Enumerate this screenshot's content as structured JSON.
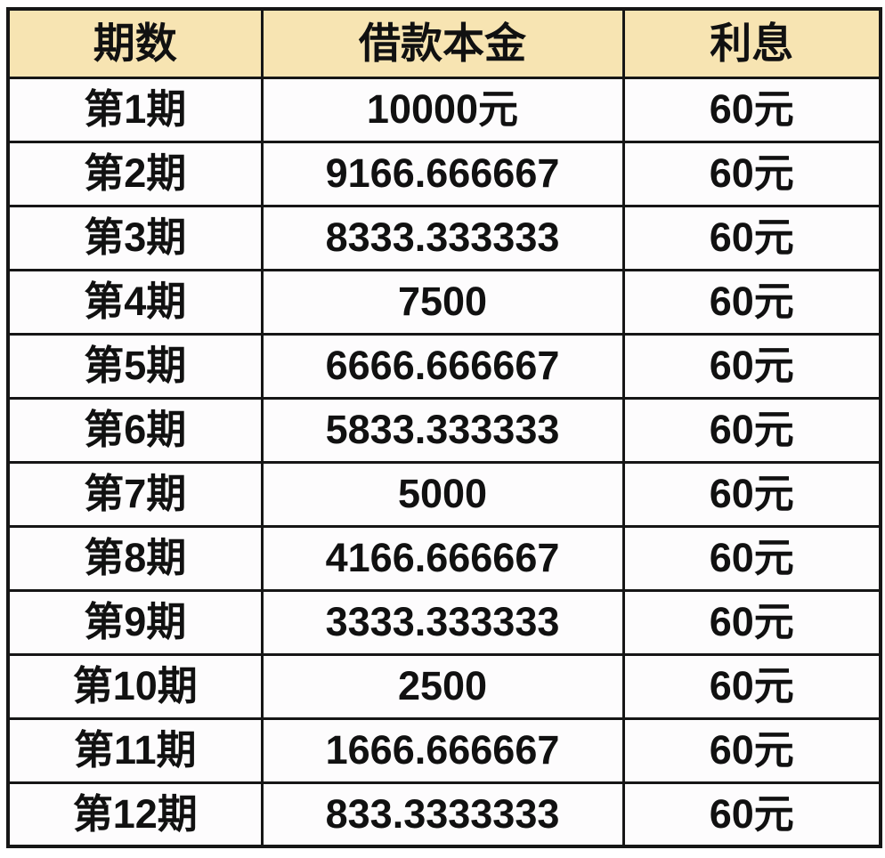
{
  "colors": {
    "header_bg": "#f7e4b2",
    "border": "#161616",
    "cell_bg": "#fdfcfd",
    "text": "#111111"
  },
  "chart_data": {
    "type": "table",
    "columns": [
      "期数",
      "借款本金",
      "利息"
    ],
    "rows": [
      [
        "第1期",
        "10000元",
        "60元"
      ],
      [
        "第2期",
        "9166.666667",
        "60元"
      ],
      [
        "第3期",
        "8333.333333",
        "60元"
      ],
      [
        "第4期",
        "7500",
        "60元"
      ],
      [
        "第5期",
        "6666.666667",
        "60元"
      ],
      [
        "第6期",
        "5833.333333",
        "60元"
      ],
      [
        "第7期",
        "5000",
        "60元"
      ],
      [
        "第8期",
        "4166.666667",
        "60元"
      ],
      [
        "第9期",
        "3333.333333",
        "60元"
      ],
      [
        "第10期",
        "2500",
        "60元"
      ],
      [
        "第11期",
        "1666.666667",
        "60元"
      ],
      [
        "第12期",
        "833.3333333",
        "60元"
      ]
    ]
  }
}
